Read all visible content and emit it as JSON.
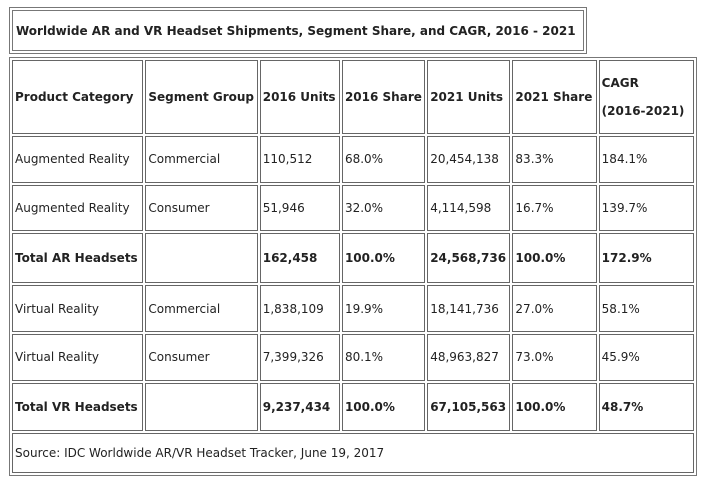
{
  "title": "Worldwide AR and VR Headset Shipments, Segment Share, and CAGR, 2016 - 2021",
  "headers": [
    "Product Category",
    "Segment Group",
    "2016 Units",
    "2016 Share",
    "2021 Units",
    "2021 Share",
    "CAGR",
    "(2016-2021)"
  ],
  "rows": [
    {
      "bold": false,
      "cells": [
        "Augmented Reality",
        "Commercial",
        "110,512",
        "68.0%",
        "20,454,138",
        "83.3%",
        "184.1%"
      ]
    },
    {
      "bold": false,
      "cells": [
        "Augmented Reality",
        "Consumer",
        "51,946",
        "32.0%",
        "4,114,598",
        "16.7%",
        "139.7%"
      ]
    },
    {
      "bold": true,
      "cells": [
        "Total AR Headsets",
        "",
        "162,458",
        "100.0%",
        "24,568,736",
        "100.0%",
        "172.9%"
      ]
    },
    {
      "bold": false,
      "cells": [
        "Virtual Reality",
        "Commercial",
        "1,838,109",
        "19.9%",
        "18,141,736",
        "27.0%",
        "58.1%"
      ]
    },
    {
      "bold": false,
      "cells": [
        "Virtual Reality",
        "Consumer",
        "7,399,326",
        "80.1%",
        "48,963,827",
        "73.0%",
        "45.9%"
      ]
    },
    {
      "bold": true,
      "cells": [
        "Total VR Headsets",
        "",
        "9,237,434",
        "100.0%",
        "67,105,563",
        "100.0%",
        "48.7%"
      ]
    }
  ],
  "source": "Source: IDC Worldwide AR/VR Headset Tracker, June 19, 2017"
}
